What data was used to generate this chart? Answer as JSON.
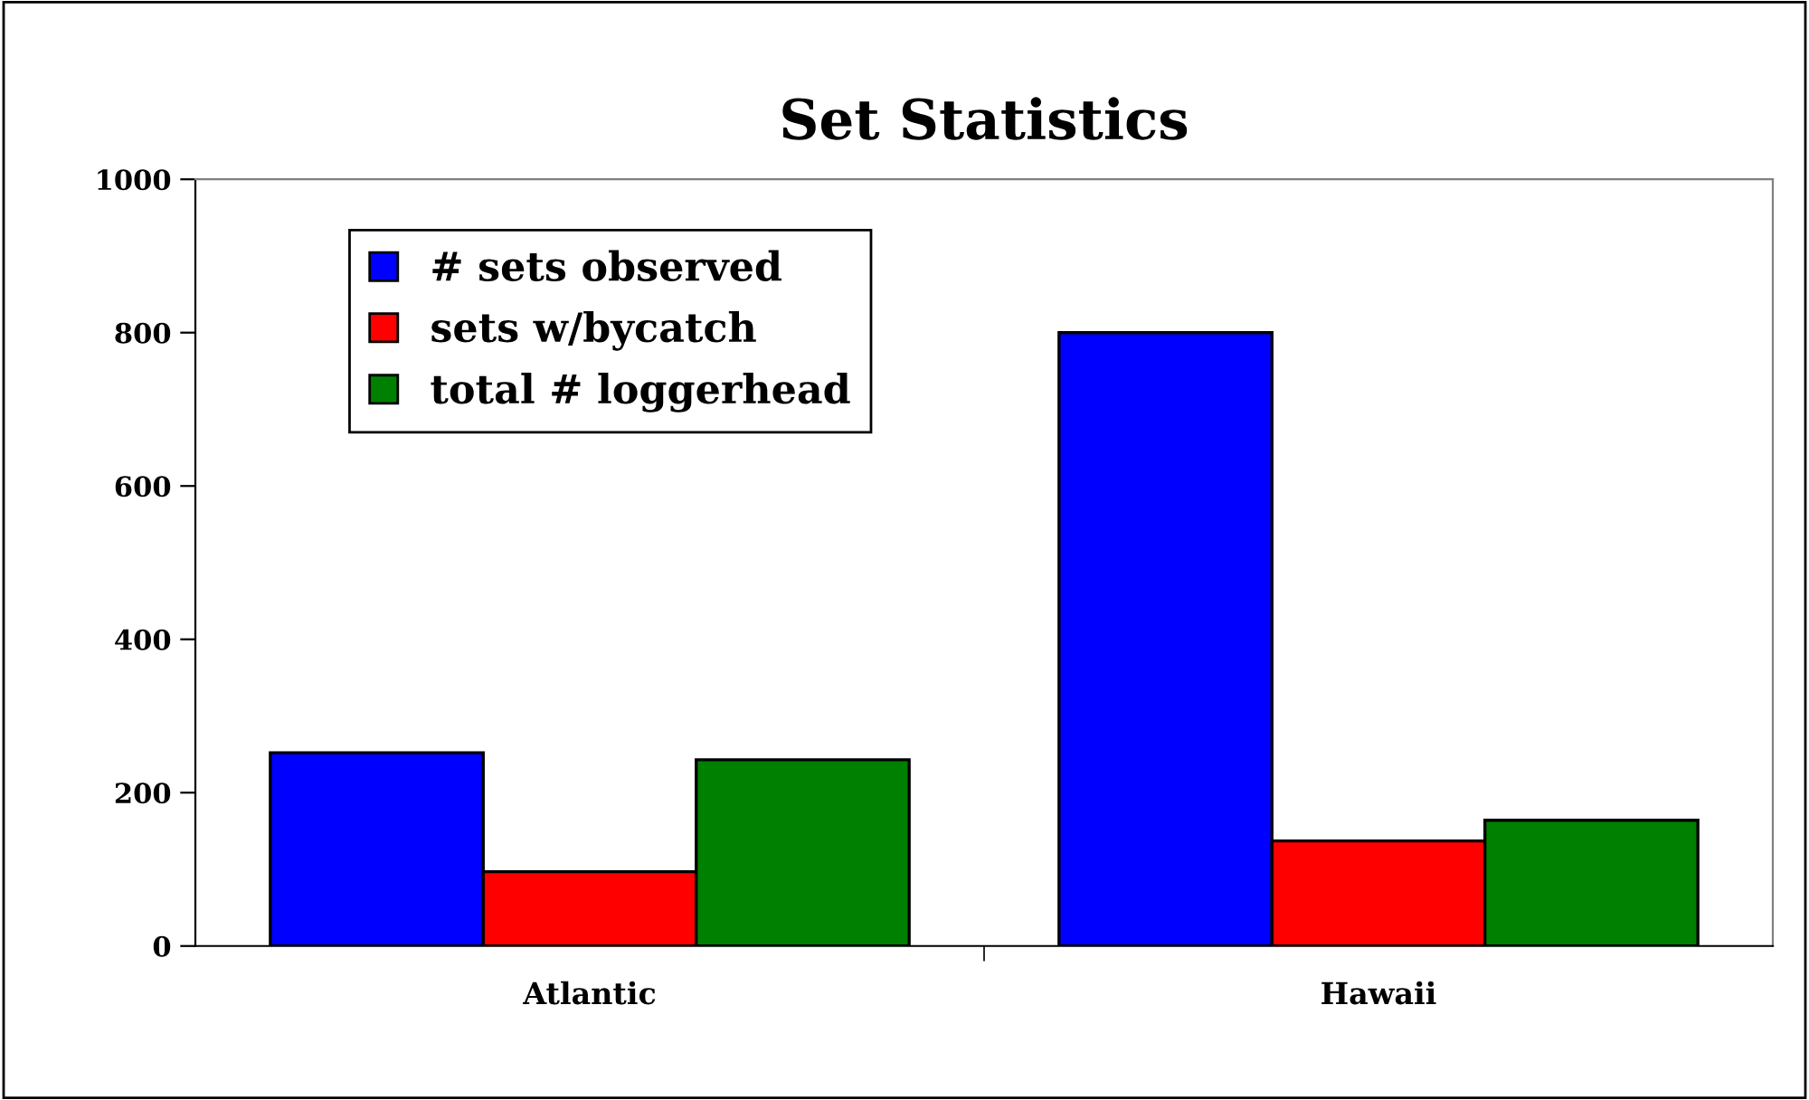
{
  "chart_data": {
    "type": "bar",
    "title": "Set Statistics",
    "categories": [
      "Atlantic",
      "Hawaii"
    ],
    "series": [
      {
        "name": "# sets observed",
        "color": "#0000ff",
        "values": [
          252,
          800
        ]
      },
      {
        "name": "sets w/bycatch",
        "color": "#ff0000",
        "values": [
          97,
          137
        ]
      },
      {
        "name": "total # loggerhead",
        "color": "#008000",
        "values": [
          243,
          164
        ]
      }
    ],
    "ylim": [
      0,
      1000
    ],
    "yticks": [
      0,
      200,
      400,
      600,
      800,
      1000
    ],
    "grid": false,
    "legend": "top left"
  }
}
